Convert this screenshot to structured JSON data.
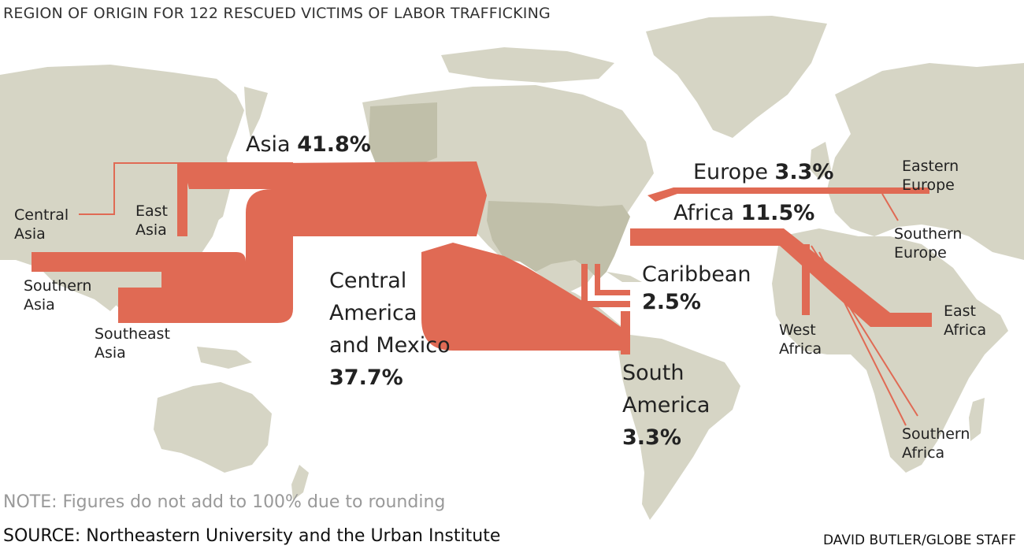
{
  "title": "REGION OF ORIGIN FOR 122 RESCUED VICTIMS OF LABOR TRAFFICKING",
  "colors": {
    "land": "#d6d5c5",
    "usa": "#c0bfa9",
    "flow": "#e06a54",
    "background": "#ffffff"
  },
  "regions": {
    "asia": {
      "name": "Asia",
      "pct": "41.8%"
    },
    "central_america": {
      "name_l1": "Central",
      "name_l2": "America",
      "name_l3": "and Mexico",
      "pct": "37.7%"
    },
    "europe": {
      "name": "Europe",
      "pct": "3.3%"
    },
    "africa": {
      "name": "Africa",
      "pct": "11.5%"
    },
    "caribbean": {
      "name": "Caribbean",
      "pct": "2.5%"
    },
    "south_america": {
      "name_l1": "South",
      "name_l2": "America",
      "pct": "3.3%"
    }
  },
  "subregions": {
    "central_asia": [
      "Central",
      "Asia"
    ],
    "east_asia": [
      "East",
      "Asia"
    ],
    "southern_asia": [
      "Southern",
      "Asia"
    ],
    "southeast_asia": [
      "Southeast",
      "Asia"
    ],
    "eastern_europe": [
      "Eastern",
      "Europe"
    ],
    "southern_europe": [
      "Southern",
      "Europe"
    ],
    "west_africa": [
      "West",
      "Africa"
    ],
    "east_africa": [
      "East",
      "Africa"
    ],
    "southern_africa": [
      "Southern",
      "Africa"
    ]
  },
  "note": "NOTE: Figures do not add to 100% due to rounding",
  "source": "SOURCE: Northeastern University and the Urban Institute",
  "credit": "DAVID BUTLER/GLOBE STAFF"
}
